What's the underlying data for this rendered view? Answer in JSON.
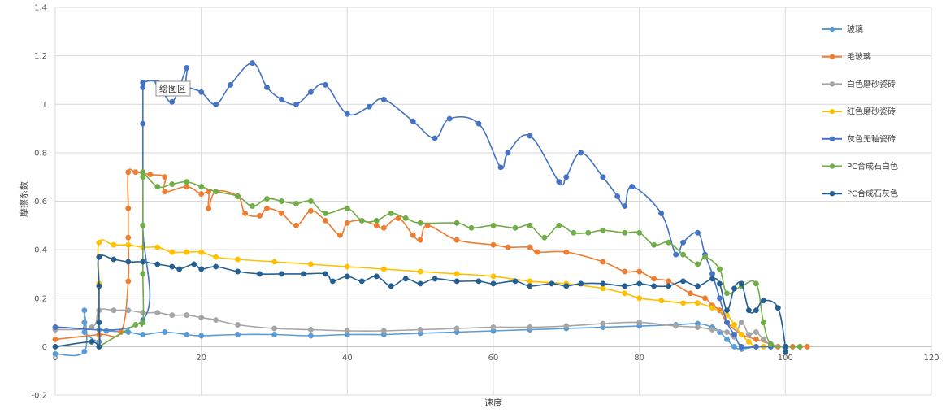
{
  "chart_data": {
    "type": "scatter",
    "xlabel": "速度",
    "ylabel": "摩擦系数",
    "xlim": [
      0,
      120
    ],
    "ylim": [
      -0.2,
      1.4
    ],
    "x_ticks": [
      "0",
      "20",
      "40",
      "60",
      "80",
      "100",
      "120"
    ],
    "y_ticks": [
      "-0.2",
      "0",
      "0.2",
      "0.4",
      "0.6",
      "0.8",
      "1",
      "1.2",
      "1.4"
    ],
    "grid": true,
    "legend_position": "right",
    "tooltip": "绘图区",
    "series": [
      {
        "name": "玻璃",
        "color": "#5b9bd5",
        "points": [
          [
            0,
            -0.03
          ],
          [
            4,
            -0.02
          ],
          [
            4,
            0.15
          ],
          [
            4,
            0.1
          ],
          [
            4,
            0.06
          ],
          [
            6,
            0.02
          ],
          [
            6,
            0.07
          ],
          [
            7,
            0.065
          ],
          [
            10,
            0.06
          ],
          [
            12,
            0.05
          ],
          [
            15,
            0.06
          ],
          [
            18,
            0.05
          ],
          [
            20,
            0.045
          ],
          [
            25,
            0.05
          ],
          [
            30,
            0.05
          ],
          [
            35,
            0.045
          ],
          [
            40,
            0.05
          ],
          [
            45,
            0.05
          ],
          [
            50,
            0.055
          ],
          [
            55,
            0.06
          ],
          [
            60,
            0.065
          ],
          [
            65,
            0.07
          ],
          [
            70,
            0.075
          ],
          [
            75,
            0.08
          ],
          [
            80,
            0.085
          ],
          [
            85,
            0.09
          ],
          [
            88,
            0.095
          ],
          [
            90,
            0.08
          ],
          [
            91,
            0.06
          ],
          [
            92,
            0.03
          ],
          [
            93,
            0.0
          ],
          [
            94,
            -0.01
          ],
          [
            96,
            0.0
          ],
          [
            98,
            0.0
          ],
          [
            100,
            0.0
          ],
          [
            102,
            0.0
          ]
        ]
      },
      {
        "name": "毛玻璃",
        "color": "#ed7d31",
        "points": [
          [
            0,
            0.03
          ],
          [
            6,
            0.05
          ],
          [
            9,
            0.06
          ],
          [
            10,
            0.27
          ],
          [
            10,
            0.45
          ],
          [
            10,
            0.57
          ],
          [
            10,
            0.72
          ],
          [
            11,
            0.72
          ],
          [
            13,
            0.71
          ],
          [
            15,
            0.7
          ],
          [
            15,
            0.64
          ],
          [
            18,
            0.66
          ],
          [
            20,
            0.63
          ],
          [
            21,
            0.64
          ],
          [
            21,
            0.57
          ],
          [
            22,
            0.64
          ],
          [
            25,
            0.62
          ],
          [
            26,
            0.55
          ],
          [
            28,
            0.54
          ],
          [
            29,
            0.57
          ],
          [
            31,
            0.55
          ],
          [
            33,
            0.5
          ],
          [
            35,
            0.56
          ],
          [
            37,
            0.52
          ],
          [
            39,
            0.46
          ],
          [
            40,
            0.51
          ],
          [
            42,
            0.52
          ],
          [
            44,
            0.5
          ],
          [
            45,
            0.49
          ],
          [
            47,
            0.53
          ],
          [
            49,
            0.46
          ],
          [
            50,
            0.44
          ],
          [
            51,
            0.5
          ],
          [
            55,
            0.44
          ],
          [
            60,
            0.42
          ],
          [
            62,
            0.41
          ],
          [
            65,
            0.41
          ],
          [
            66,
            0.39
          ],
          [
            70,
            0.39
          ],
          [
            75,
            0.35
          ],
          [
            78,
            0.31
          ],
          [
            80,
            0.31
          ],
          [
            82,
            0.28
          ],
          [
            84,
            0.27
          ],
          [
            87,
            0.22
          ],
          [
            89,
            0.2
          ],
          [
            90,
            0.17
          ],
          [
            91,
            0.15
          ],
          [
            92,
            0.1
          ],
          [
            94,
            0.05
          ],
          [
            96,
            0.03
          ],
          [
            98,
            0.01
          ],
          [
            99,
            0.0
          ],
          [
            100,
            0.0
          ],
          [
            101,
            0.0
          ],
          [
            103,
            0.0
          ]
        ]
      },
      {
        "name": "白色磨砂瓷砖",
        "color": "#a5a5a5",
        "points": [
          [
            0,
            0.07
          ],
          [
            5,
            0.08
          ],
          [
            6,
            0.15
          ],
          [
            8,
            0.15
          ],
          [
            10,
            0.15
          ],
          [
            12,
            0.14
          ],
          [
            14,
            0.14
          ],
          [
            16,
            0.13
          ],
          [
            18,
            0.13
          ],
          [
            20,
            0.12
          ],
          [
            22,
            0.11
          ],
          [
            25,
            0.09
          ],
          [
            30,
            0.075
          ],
          [
            35,
            0.07
          ],
          [
            40,
            0.065
          ],
          [
            45,
            0.065
          ],
          [
            50,
            0.07
          ],
          [
            55,
            0.075
          ],
          [
            60,
            0.08
          ],
          [
            65,
            0.08
          ],
          [
            70,
            0.085
          ],
          [
            75,
            0.095
          ],
          [
            80,
            0.1
          ],
          [
            85,
            0.085
          ],
          [
            88,
            0.08
          ],
          [
            90,
            0.07
          ],
          [
            92,
            0.06
          ],
          [
            93,
            0.04
          ],
          [
            94,
            0.1
          ],
          [
            95,
            0.05
          ],
          [
            96,
            0.06
          ],
          [
            97,
            0.03
          ],
          [
            98,
            0.01
          ],
          [
            100,
            0.0
          ],
          [
            102,
            0.0
          ]
        ]
      },
      {
        "name": "红色磨砂瓷砖",
        "color": "#ffc000",
        "points": [
          [
            6,
            0.0
          ],
          [
            6,
            0.26
          ],
          [
            6,
            0.43
          ],
          [
            8,
            0.42
          ],
          [
            10,
            0.42
          ],
          [
            12,
            0.41
          ],
          [
            14,
            0.41
          ],
          [
            16,
            0.39
          ],
          [
            18,
            0.39
          ],
          [
            20,
            0.39
          ],
          [
            22,
            0.37
          ],
          [
            25,
            0.36
          ],
          [
            30,
            0.35
          ],
          [
            35,
            0.34
          ],
          [
            40,
            0.33
          ],
          [
            45,
            0.32
          ],
          [
            50,
            0.31
          ],
          [
            55,
            0.3
          ],
          [
            60,
            0.29
          ],
          [
            65,
            0.27
          ],
          [
            70,
            0.26
          ],
          [
            75,
            0.24
          ],
          [
            78,
            0.22
          ],
          [
            80,
            0.2
          ],
          [
            83,
            0.19
          ],
          [
            86,
            0.18
          ],
          [
            88,
            0.18
          ],
          [
            90,
            0.16
          ],
          [
            92,
            0.13
          ],
          [
            93,
            0.09
          ],
          [
            94,
            0.05
          ],
          [
            95,
            0.02
          ],
          [
            96,
            0.0
          ],
          [
            97,
            0.0
          ],
          [
            100,
            0.0
          ]
        ]
      },
      {
        "name": "灰色无釉瓷砖",
        "color": "#4472c4",
        "points": [
          [
            0,
            0.08
          ],
          [
            12,
            0.11
          ],
          [
            12,
            0.5
          ],
          [
            12,
            0.92
          ],
          [
            12,
            1.07
          ],
          [
            12,
            1.09
          ],
          [
            14,
            1.09
          ],
          [
            16,
            1.01
          ],
          [
            18,
            1.15
          ],
          [
            18,
            1.08
          ],
          [
            20,
            1.05
          ],
          [
            22,
            1.0
          ],
          [
            24,
            1.08
          ],
          [
            27,
            1.17
          ],
          [
            29,
            1.07
          ],
          [
            31,
            1.02
          ],
          [
            33,
            1.0
          ],
          [
            35,
            1.05
          ],
          [
            37,
            1.08
          ],
          [
            40,
            0.96
          ],
          [
            43,
            0.99
          ],
          [
            45,
            1.02
          ],
          [
            49,
            0.93
          ],
          [
            52,
            0.86
          ],
          [
            54,
            0.94
          ],
          [
            58,
            0.92
          ],
          [
            61,
            0.74
          ],
          [
            62,
            0.8
          ],
          [
            65,
            0.87
          ],
          [
            69,
            0.68
          ],
          [
            70,
            0.7
          ],
          [
            72,
            0.8
          ],
          [
            75,
            0.7
          ],
          [
            77,
            0.62
          ],
          [
            78,
            0.58
          ],
          [
            79,
            0.66
          ],
          [
            83,
            0.55
          ],
          [
            85,
            0.38
          ],
          [
            86,
            0.43
          ],
          [
            88,
            0.47
          ],
          [
            89,
            0.38
          ],
          [
            90,
            0.3
          ],
          [
            91,
            0.2
          ],
          [
            92,
            0.1
          ],
          [
            93,
            0.05
          ],
          [
            94,
            0.0
          ],
          [
            96,
            0.0
          ],
          [
            98,
            0.0
          ],
          [
            100,
            0.0
          ]
        ]
      },
      {
        "name": "PC合成石白色",
        "color": "#70ad47",
        "points": [
          [
            6,
            0.0
          ],
          [
            11,
            0.09
          ],
          [
            12,
            0.1
          ],
          [
            12,
            0.3
          ],
          [
            12,
            0.5
          ],
          [
            12,
            0.7
          ],
          [
            12,
            0.72
          ],
          [
            14,
            0.66
          ],
          [
            16,
            0.67
          ],
          [
            18,
            0.68
          ],
          [
            20,
            0.66
          ],
          [
            22,
            0.64
          ],
          [
            25,
            0.62
          ],
          [
            27,
            0.58
          ],
          [
            29,
            0.61
          ],
          [
            31,
            0.6
          ],
          [
            33,
            0.59
          ],
          [
            35,
            0.6
          ],
          [
            37,
            0.55
          ],
          [
            40,
            0.57
          ],
          [
            42,
            0.52
          ],
          [
            44,
            0.52
          ],
          [
            46,
            0.55
          ],
          [
            48,
            0.53
          ],
          [
            50,
            0.51
          ],
          [
            55,
            0.51
          ],
          [
            57,
            0.49
          ],
          [
            60,
            0.5
          ],
          [
            63,
            0.49
          ],
          [
            65,
            0.5
          ],
          [
            67,
            0.45
          ],
          [
            69,
            0.5
          ],
          [
            71,
            0.47
          ],
          [
            73,
            0.47
          ],
          [
            75,
            0.48
          ],
          [
            78,
            0.47
          ],
          [
            80,
            0.47
          ],
          [
            82,
            0.42
          ],
          [
            84,
            0.43
          ],
          [
            86,
            0.38
          ],
          [
            88,
            0.34
          ],
          [
            89,
            0.37
          ],
          [
            91,
            0.32
          ],
          [
            92,
            0.22
          ],
          [
            94,
            0.25
          ],
          [
            96,
            0.26
          ],
          [
            97,
            0.1
          ],
          [
            98,
            0.01
          ],
          [
            100,
            0.0
          ],
          [
            102,
            0.0
          ]
        ]
      },
      {
        "name": "PC合成石灰色",
        "color": "#255e91",
        "points": [
          [
            0,
            0.0
          ],
          [
            5,
            0.02
          ],
          [
            6,
            0.0
          ],
          [
            6,
            0.1
          ],
          [
            6,
            0.25
          ],
          [
            6,
            0.37
          ],
          [
            8,
            0.36
          ],
          [
            10,
            0.35
          ],
          [
            12,
            0.35
          ],
          [
            14,
            0.34
          ],
          [
            16,
            0.33
          ],
          [
            17,
            0.32
          ],
          [
            19,
            0.34
          ],
          [
            20,
            0.32
          ],
          [
            22,
            0.33
          ],
          [
            25,
            0.31
          ],
          [
            28,
            0.3
          ],
          [
            31,
            0.3
          ],
          [
            34,
            0.3
          ],
          [
            37,
            0.3
          ],
          [
            38,
            0.27
          ],
          [
            40,
            0.29
          ],
          [
            42,
            0.27
          ],
          [
            44,
            0.29
          ],
          [
            46,
            0.25
          ],
          [
            48,
            0.28
          ],
          [
            50,
            0.26
          ],
          [
            52,
            0.28
          ],
          [
            55,
            0.27
          ],
          [
            58,
            0.27
          ],
          [
            60,
            0.26
          ],
          [
            63,
            0.27
          ],
          [
            65,
            0.25
          ],
          [
            68,
            0.26
          ],
          [
            70,
            0.25
          ],
          [
            72,
            0.26
          ],
          [
            75,
            0.26
          ],
          [
            78,
            0.25
          ],
          [
            80,
            0.26
          ],
          [
            82,
            0.25
          ],
          [
            84,
            0.25
          ],
          [
            86,
            0.27
          ],
          [
            88,
            0.25
          ],
          [
            90,
            0.28
          ],
          [
            91,
            0.26
          ],
          [
            92,
            0.15
          ],
          [
            93,
            0.24
          ],
          [
            94,
            0.26
          ],
          [
            95,
            0.15
          ],
          [
            96,
            0.15
          ],
          [
            97,
            0.19
          ],
          [
            99,
            0.16
          ],
          [
            100,
            0.0
          ],
          [
            100,
            -0.02
          ]
        ]
      }
    ]
  }
}
